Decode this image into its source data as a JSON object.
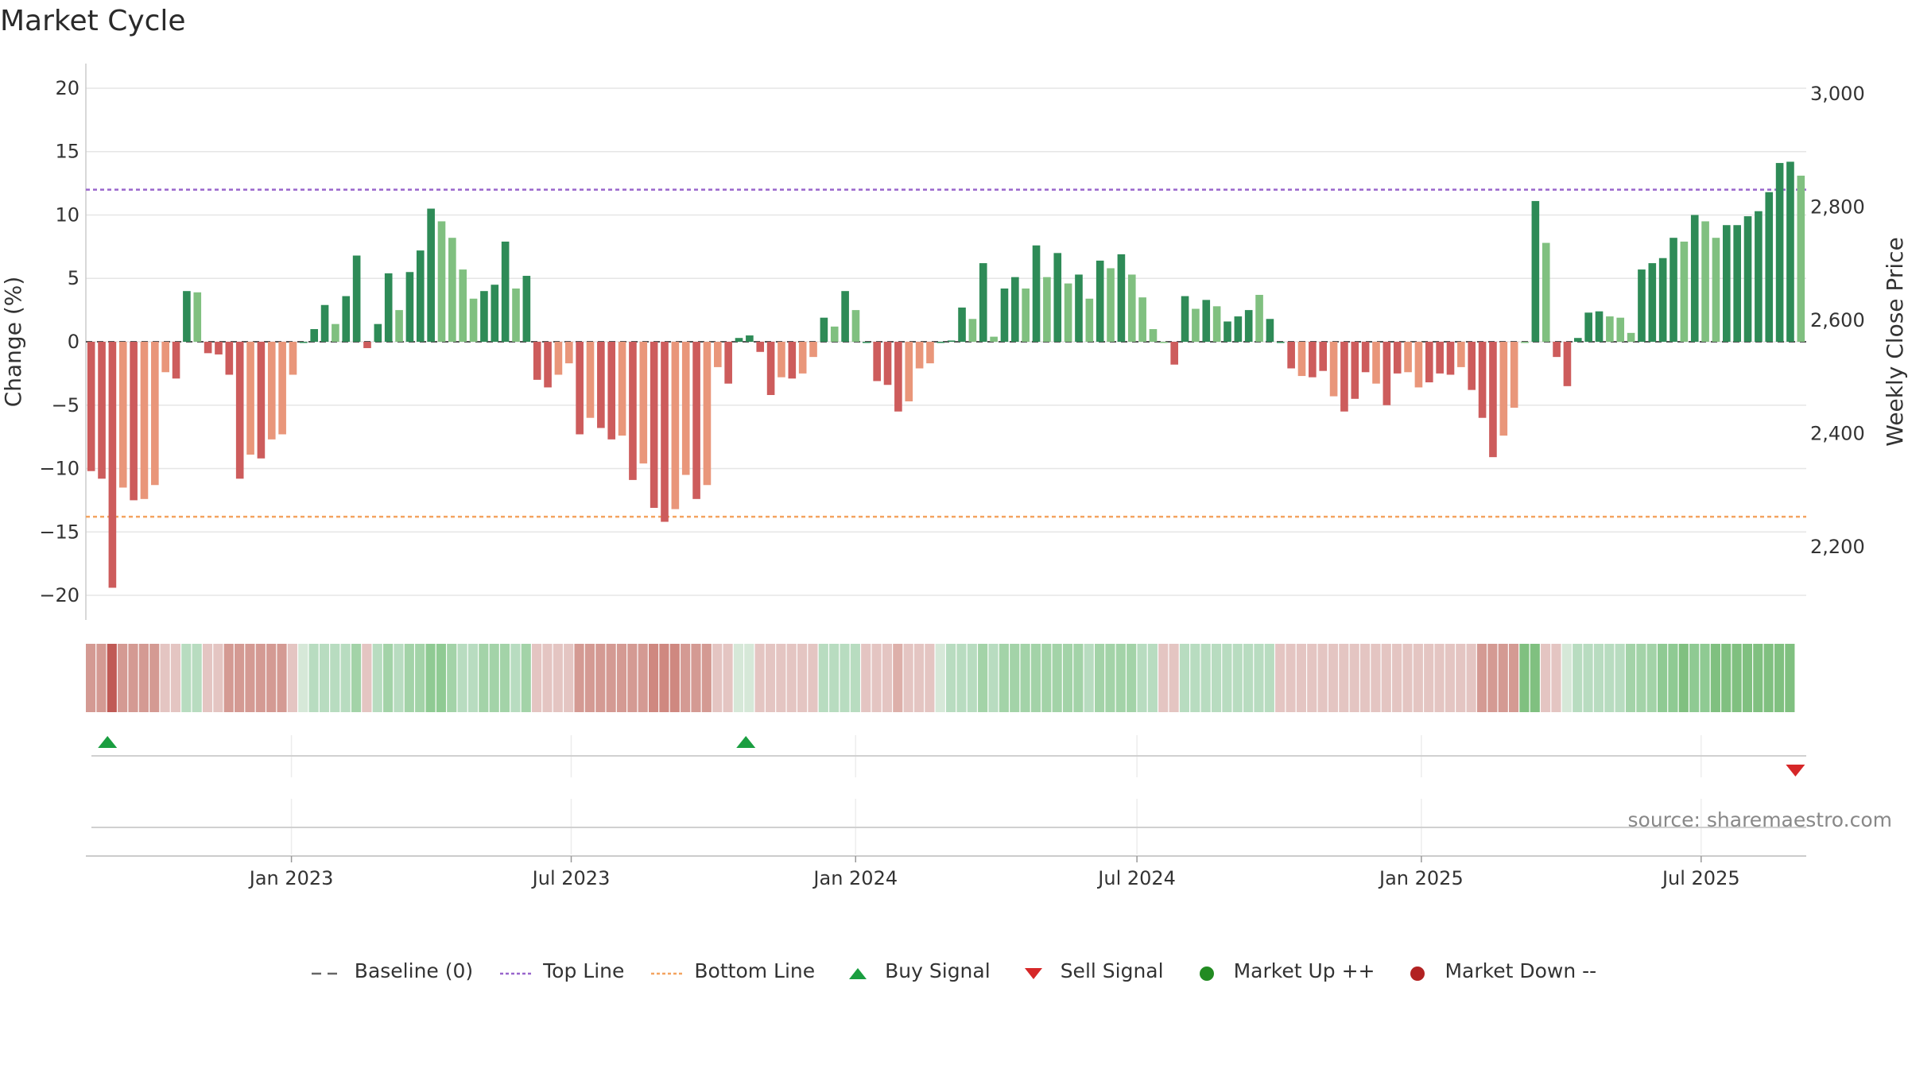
{
  "title": "Market Cycle",
  "source": "source: sharemaestro.com",
  "colors": {
    "up_strong": "#2e8b57",
    "up_light": "#80c080",
    "down_strong": "#cd5c5c",
    "down_light": "#e9967a",
    "top_line": "#9966cc",
    "bottom_line": "#f4a460",
    "baseline": "#555555",
    "buy": "#1a9e40",
    "sell": "#d62728",
    "market_up": "#228b22",
    "market_down": "#b22222"
  },
  "legend": [
    {
      "label": "Baseline (0)",
      "icon": "dash-line-icon",
      "color": "#666666"
    },
    {
      "label": "Top Line",
      "icon": "dotted-line-icon",
      "color": "#9966cc"
    },
    {
      "label": "Bottom Line",
      "icon": "dotted-line-icon",
      "color": "#f4a460"
    },
    {
      "label": "Buy Signal",
      "icon": "triangle-up-icon",
      "color": "#1a9e40"
    },
    {
      "label": "Sell Signal",
      "icon": "triangle-down-icon",
      "color": "#d62728"
    },
    {
      "label": "Market Up ++",
      "icon": "circle-icon",
      "color": "#228b22"
    },
    {
      "label": "Market Down --",
      "icon": "circle-icon",
      "color": "#b22222"
    }
  ],
  "chart_data": {
    "type": "bar",
    "title": "Market Cycle",
    "ylabel": "Change (%)",
    "y2label": "Weekly Close Price",
    "ylim": [
      -21,
      21
    ],
    "y_ticks": [
      20,
      15,
      10,
      5,
      0,
      -5,
      -10,
      -15,
      -20
    ],
    "y_tick_labels": [
      "20",
      "15",
      "10",
      "5",
      "0",
      "−5",
      "−10",
      "−15",
      "−20"
    ],
    "y2_ticks": [
      3000,
      2800,
      2600,
      2400,
      2200
    ],
    "y2_tick_labels": [
      "3,000",
      "2,800",
      "2,600",
      "2,400",
      "2,200"
    ],
    "x_start": "2022-08-21",
    "x_end": "2025-09-07",
    "x_ticks": [
      "2023-01-01",
      "2023-07-01",
      "2024-01-01",
      "2024-07-01",
      "2025-01-01",
      "2025-07-01"
    ],
    "x_tick_labels": [
      "Jan 2023",
      "Jul 2023",
      "Jan 2024",
      "Jul 2024",
      "Jan 2025",
      "Jul 2025"
    ],
    "top_line": 12,
    "bottom_line": -13.8,
    "grid": true,
    "legend_position": "bottom-center",
    "series": [
      {
        "values": [
          -10.2,
          -10.8,
          -19.4,
          -11.5,
          -12.5,
          -12.4,
          -11.3,
          -2.4,
          -2.9,
          4.0,
          3.9,
          -0.9,
          -1.0,
          -2.6,
          -10.8,
          -8.9,
          -9.2,
          -7.7,
          -7.3,
          -2.6,
          0.0,
          1.0,
          2.9,
          1.4,
          3.6,
          6.8,
          -0.5,
          1.4,
          5.4,
          2.5,
          5.5,
          7.2,
          10.5,
          9.5,
          8.2,
          5.7,
          3.4,
          4.0,
          4.5,
          7.9,
          4.2,
          5.2,
          -3.0,
          -3.6,
          -2.6,
          -1.7,
          -7.3,
          -6.0,
          -6.8,
          -7.7,
          -7.4,
          -10.9,
          -9.6,
          -13.1,
          -14.2,
          -13.2,
          -10.5,
          -12.4,
          -11.3,
          -2.0,
          -3.3,
          0.3,
          0.5,
          -0.8,
          -4.2,
          -2.8,
          -2.9,
          -2.5,
          -1.2,
          1.9,
          1.2,
          4.0,
          2.5,
          0.0,
          -3.1,
          -3.4,
          -5.5,
          -4.7,
          -2.1,
          -1.7,
          0.0,
          0.1,
          2.7,
          1.8,
          6.2,
          0.4,
          4.2,
          5.1,
          4.2,
          7.6,
          5.1,
          7.0,
          4.6,
          5.3,
          3.4,
          6.4,
          5.8,
          6.9,
          5.3,
          3.5,
          1.0,
          0.0,
          -1.8,
          3.6,
          2.6,
          3.3,
          2.8,
          1.6,
          2.0,
          2.5,
          3.7,
          1.8,
          0.0,
          -2.1,
          -2.7,
          -2.8,
          -2.3,
          -4.3,
          -5.5,
          -4.5,
          -2.4,
          -3.3,
          -5.0,
          -2.5,
          -2.4,
          -3.6,
          -3.2,
          -2.5,
          -2.6,
          -2.0,
          -3.8,
          -6.0,
          -9.1,
          -7.4,
          -5.2,
          0.0,
          11.1,
          7.8,
          -1.2,
          -3.5,
          0.3,
          2.3,
          2.4,
          2.0,
          1.9,
          0.7,
          5.7,
          6.2,
          6.6,
          8.2,
          7.9,
          10.0,
          9.5,
          8.2,
          9.2,
          9.2,
          9.9,
          10.3,
          11.8,
          14.1,
          14.2,
          13.1
        ],
        "intensity": [
          "strong",
          "strong",
          "strong",
          "light",
          "strong",
          "light",
          "light",
          "light",
          "strong",
          "strong",
          "light",
          "strong",
          "strong",
          "strong",
          "strong",
          "light",
          "strong",
          "light",
          "light",
          "light",
          "strong",
          "strong",
          "strong",
          "light",
          "strong",
          "strong",
          "strong",
          "strong",
          "strong",
          "light",
          "strong",
          "strong",
          "strong",
          "light",
          "light",
          "light",
          "light",
          "strong",
          "strong",
          "strong",
          "light",
          "strong",
          "strong",
          "strong",
          "light",
          "light",
          "strong",
          "light",
          "strong",
          "strong",
          "light",
          "strong",
          "light",
          "strong",
          "strong",
          "light",
          "light",
          "strong",
          "light",
          "light",
          "strong",
          "strong",
          "strong",
          "strong",
          "strong",
          "light",
          "strong",
          "light",
          "light",
          "strong",
          "light",
          "strong",
          "light",
          "strong",
          "strong",
          "strong",
          "strong",
          "light",
          "light",
          "light",
          "strong",
          "strong",
          "strong",
          "light",
          "strong",
          "light",
          "strong",
          "strong",
          "light",
          "strong",
          "light",
          "strong",
          "light",
          "strong",
          "light",
          "strong",
          "light",
          "strong",
          "light",
          "light",
          "light",
          "light",
          "strong",
          "strong",
          "light",
          "strong",
          "light",
          "strong",
          "strong",
          "strong",
          "light",
          "strong",
          "strong",
          "strong",
          "light",
          "strong",
          "strong",
          "light",
          "strong",
          "strong",
          "strong",
          "light",
          "strong",
          "strong",
          "light",
          "light",
          "strong",
          "strong",
          "strong",
          "light",
          "strong",
          "strong",
          "strong",
          "light",
          "light",
          "light",
          "strong",
          "light",
          "strong",
          "strong",
          "strong",
          "strong",
          "strong",
          "light",
          "light",
          "light",
          "strong",
          "strong",
          "strong",
          "strong",
          "light",
          "strong",
          "light",
          "light",
          "strong",
          "strong",
          "strong",
          "strong",
          "strong",
          "strong",
          "strong",
          "light"
        ]
      }
    ],
    "heat_strip": [
      "#d49a93",
      "#d49a93",
      "#c05a55",
      "#d49a93",
      "#d49a93",
      "#d49a93",
      "#d49a93",
      "#e4c5c2",
      "#e4c5c2",
      "#b8dcc0",
      "#b8dcc0",
      "#e4c5c2",
      "#e4c5c2",
      "#d49a93",
      "#d49a93",
      "#d49a93",
      "#d49a93",
      "#d49a93",
      "#d49a93",
      "#e4c5c2",
      "#d6e8d8",
      "#b8dcc0",
      "#b8dcc0",
      "#b8dcc0",
      "#b8dcc0",
      "#a3d3a8",
      "#e4c5c2",
      "#b8dcc0",
      "#a3d3a8",
      "#b8dcc0",
      "#a3d3a8",
      "#a3d3a8",
      "#8fca93",
      "#8fca93",
      "#a3d3a8",
      "#b8dcc0",
      "#b8dcc0",
      "#a3d3a8",
      "#a3d3a8",
      "#a3d3a8",
      "#b8dcc0",
      "#a3d3a8",
      "#e4c5c2",
      "#e4c5c2",
      "#e4c5c2",
      "#e4c5c2",
      "#d49a93",
      "#d49a93",
      "#d49a93",
      "#d49a93",
      "#d49a93",
      "#d49a93",
      "#d49a93",
      "#cf8880",
      "#cf8880",
      "#cf8880",
      "#d49a93",
      "#d49a93",
      "#d49a93",
      "#e4c5c2",
      "#e4c5c2",
      "#d6e8d8",
      "#d6e8d8",
      "#e4c5c2",
      "#e4c5c2",
      "#e4c5c2",
      "#e4c5c2",
      "#e4c5c2",
      "#e4c5c2",
      "#b8dcc0",
      "#b8dcc0",
      "#b8dcc0",
      "#b8dcc0",
      "#e4c5c2",
      "#e4c5c2",
      "#e4c5c2",
      "#ddb0aa",
      "#e4c5c2",
      "#e4c5c2",
      "#e4c5c2",
      "#d6e8d8",
      "#b8dcc0",
      "#b8dcc0",
      "#b8dcc0",
      "#a3d3a8",
      "#b8dcc0",
      "#a3d3a8",
      "#a3d3a8",
      "#a3d3a8",
      "#a3d3a8",
      "#a3d3a8",
      "#a3d3a8",
      "#a3d3a8",
      "#a3d3a8",
      "#b8dcc0",
      "#a3d3a8",
      "#a3d3a8",
      "#a3d3a8",
      "#a3d3a8",
      "#b8dcc0",
      "#b8dcc0",
      "#e4c5c2",
      "#e4c5c2",
      "#b8dcc0",
      "#b8dcc0",
      "#b8dcc0",
      "#b8dcc0",
      "#b8dcc0",
      "#b8dcc0",
      "#b8dcc0",
      "#b8dcc0",
      "#b8dcc0",
      "#e4c5c2",
      "#e4c5c2",
      "#e4c5c2",
      "#e4c5c2",
      "#e4c5c2",
      "#e4c5c2",
      "#e4c5c2",
      "#e4c5c2",
      "#e4c5c2",
      "#e4c5c2",
      "#e4c5c2",
      "#e4c5c2",
      "#e4c5c2",
      "#e4c5c2",
      "#e4c5c2",
      "#e4c5c2",
      "#e4c5c2",
      "#e4c5c2",
      "#e4c5c2",
      "#d49a93",
      "#d49a93",
      "#d49a93",
      "#d49a93",
      "#80c080",
      "#80c080",
      "#e4c5c2",
      "#e4c5c2",
      "#d6e8d8",
      "#b8dcc0",
      "#b8dcc0",
      "#b8dcc0",
      "#b8dcc0",
      "#b8dcc0",
      "#a3d3a8",
      "#a3d3a8",
      "#a3d3a8",
      "#8fca93",
      "#8fca93",
      "#80c080",
      "#8fca93",
      "#8fca93",
      "#80c080",
      "#80c080",
      "#80c080",
      "#80c080",
      "#80c080",
      "#80c080",
      "#80c080",
      "#80c080"
    ],
    "buy_signals": [
      "2022-09-04",
      "2023-10-22"
    ],
    "sell_signals": [
      "2025-08-31"
    ]
  }
}
